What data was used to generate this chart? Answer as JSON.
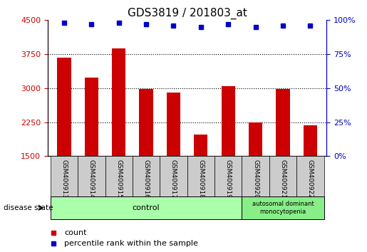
{
  "title": "GDS3819 / 201803_at",
  "samples": [
    "GSM400913",
    "GSM400914",
    "GSM400915",
    "GSM400916",
    "GSM400917",
    "GSM400918",
    "GSM400919",
    "GSM400920",
    "GSM400921",
    "GSM400922"
  ],
  "counts": [
    3680,
    3230,
    3880,
    2980,
    2900,
    1980,
    3050,
    2240,
    2980,
    2190
  ],
  "percentile_ranks": [
    98,
    97,
    98,
    97,
    96,
    95,
    97,
    95,
    96,
    96
  ],
  "ylim_left": [
    1500,
    4500
  ],
  "ylim_right": [
    0,
    100
  ],
  "yticks_left": [
    1500,
    2250,
    3000,
    3750,
    4500
  ],
  "yticks_right": [
    0,
    25,
    50,
    75,
    100
  ],
  "bar_color": "#cc0000",
  "dot_color": "#0000cc",
  "tick_label_bg": "#cccccc",
  "control_label": "control",
  "disease_label": "autosomal dominant\nmonocytopenia",
  "control_color": "#aaffaa",
  "disease_color": "#88ee88",
  "disease_state_label": "disease state",
  "legend_count_label": "count",
  "legend_percentile_label": "percentile rank within the sample",
  "title_fontsize": 11,
  "tick_fontsize": 8
}
